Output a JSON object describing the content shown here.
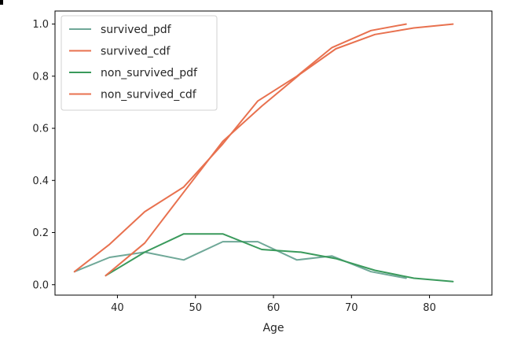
{
  "chart_data": {
    "type": "line",
    "title": "",
    "xlabel": "Age",
    "ylabel": "",
    "xlim": [
      32,
      88
    ],
    "ylim": [
      -0.04,
      1.05
    ],
    "xticks": [
      40,
      50,
      60,
      70,
      80
    ],
    "yticks": [
      0.0,
      0.2,
      0.4,
      0.6,
      0.8,
      1.0
    ],
    "xtick_labels": [
      "40",
      "50",
      "60",
      "70",
      "80"
    ],
    "ytick_labels": [
      "0.0",
      "0.2",
      "0.4",
      "0.6",
      "0.8",
      "1.0"
    ],
    "grid": false,
    "legend": "top-left",
    "series": [
      {
        "name": "survived_pdf",
        "color": "#6fa898",
        "x": [
          34.5,
          39.0,
          43.5,
          48.5,
          53.5,
          58.0,
          63.0,
          67.5,
          72.5,
          77.0
        ],
        "y": [
          0.05,
          0.105,
          0.125,
          0.095,
          0.165,
          0.165,
          0.095,
          0.11,
          0.05,
          0.025
        ]
      },
      {
        "name": "survived_cdf",
        "color": "#e8714f",
        "x": [
          34.5,
          39.0,
          43.5,
          48.5,
          53.5,
          58.0,
          63.0,
          67.5,
          72.5,
          77.0
        ],
        "y": [
          0.05,
          0.155,
          0.28,
          0.375,
          0.54,
          0.705,
          0.8,
          0.91,
          0.975,
          1.0
        ]
      },
      {
        "name": "non_survived_pdf",
        "color": "#3a9a5c",
        "x": [
          38.5,
          43.5,
          48.5,
          53.5,
          58.5,
          63.5,
          68.0,
          73.0,
          78.0,
          83.0
        ],
        "y": [
          0.035,
          0.125,
          0.195,
          0.195,
          0.135,
          0.125,
          0.1,
          0.055,
          0.025,
          0.012
        ]
      },
      {
        "name": "non_survived_cdf",
        "color": "#e8714f",
        "x": [
          38.5,
          43.5,
          48.5,
          53.5,
          58.5,
          63.5,
          68.0,
          73.0,
          78.0,
          83.0
        ],
        "y": [
          0.035,
          0.16,
          0.355,
          0.55,
          0.685,
          0.81,
          0.905,
          0.96,
          0.985,
          1.0
        ]
      }
    ]
  }
}
